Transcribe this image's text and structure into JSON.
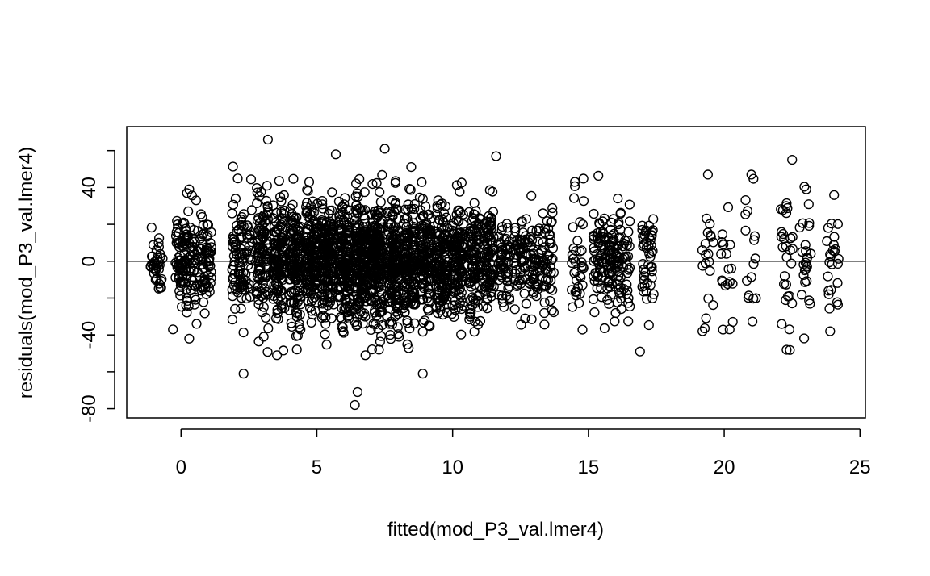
{
  "chart_data": {
    "type": "scatter",
    "title": "",
    "xlabel": "fitted(mod_P3_val.lmer4)",
    "ylabel": "residuals(mod_P3_val.lmer4)",
    "xlim": [
      -2.0,
      25.2
    ],
    "ylim": [
      -85,
      73
    ],
    "xticks": [
      0,
      5,
      10,
      15,
      20,
      25
    ],
    "yticks": [
      -80,
      -40,
      0,
      40
    ],
    "xtick_labels": [
      "0",
      "5",
      "10",
      "15",
      "20",
      "25"
    ],
    "ytick_labels": [
      "-80",
      "-40",
      "0",
      "40"
    ],
    "extra_yticks_unlabeled": [
      -60,
      -20,
      20,
      60
    ],
    "reference_line_y": 0,
    "grid": false,
    "marker": "open-circle",
    "clusters": [
      {
        "x": -0.9,
        "n": 40,
        "sd": 9
      },
      {
        "x": 0.0,
        "n": 70,
        "sd": 14
      },
      {
        "x": 0.4,
        "n": 50,
        "sd": 14
      },
      {
        "x": 0.9,
        "n": 65,
        "sd": 13
      },
      {
        "x": 2.1,
        "n": 60,
        "sd": 15
      },
      {
        "x": 2.4,
        "n": 40,
        "sd": 16
      },
      {
        "x": 3.0,
        "n": 110,
        "sd": 17
      },
      {
        "x": 3.6,
        "n": 130,
        "sd": 17
      },
      {
        "x": 4.2,
        "n": 140,
        "sd": 16
      },
      {
        "x": 4.8,
        "n": 150,
        "sd": 16
      },
      {
        "x": 5.4,
        "n": 170,
        "sd": 16
      },
      {
        "x": 6.0,
        "n": 180,
        "sd": 16
      },
      {
        "x": 6.6,
        "n": 190,
        "sd": 17
      },
      {
        "x": 7.2,
        "n": 200,
        "sd": 17
      },
      {
        "x": 7.8,
        "n": 170,
        "sd": 16
      },
      {
        "x": 8.4,
        "n": 150,
        "sd": 15
      },
      {
        "x": 9.0,
        "n": 140,
        "sd": 15
      },
      {
        "x": 9.6,
        "n": 140,
        "sd": 15
      },
      {
        "x": 10.2,
        "n": 130,
        "sd": 15
      },
      {
        "x": 10.8,
        "n": 110,
        "sd": 15
      },
      {
        "x": 11.3,
        "n": 90,
        "sd": 15
      },
      {
        "x": 11.9,
        "n": 60,
        "sd": 13
      },
      {
        "x": 12.5,
        "n": 60,
        "sd": 13
      },
      {
        "x": 13.0,
        "n": 50,
        "sd": 13
      },
      {
        "x": 13.5,
        "n": 50,
        "sd": 14
      },
      {
        "x": 14.6,
        "n": 35,
        "sd": 14
      },
      {
        "x": 15.4,
        "n": 60,
        "sd": 13
      },
      {
        "x": 15.9,
        "n": 60,
        "sd": 13
      },
      {
        "x": 16.3,
        "n": 50,
        "sd": 15
      },
      {
        "x": 17.2,
        "n": 45,
        "sd": 15
      },
      {
        "x": 19.4,
        "n": 18,
        "sd": 18
      },
      {
        "x": 20.1,
        "n": 18,
        "sd": 17
      },
      {
        "x": 21.0,
        "n": 16,
        "sd": 18
      },
      {
        "x": 22.3,
        "n": 28,
        "sd": 20
      },
      {
        "x": 23.0,
        "n": 26,
        "sd": 17
      },
      {
        "x": 24.0,
        "n": 24,
        "sd": 17
      }
    ],
    "notable_points": [
      {
        "x": 3.2,
        "y": 66
      },
      {
        "x": 6.4,
        "y": -78
      },
      {
        "x": 6.5,
        "y": -71
      },
      {
        "x": 2.3,
        "y": -61
      },
      {
        "x": 8.9,
        "y": -61
      },
      {
        "x": 7.5,
        "y": 61
      },
      {
        "x": 5.7,
        "y": 58
      },
      {
        "x": 11.6,
        "y": 57
      },
      {
        "x": 22.5,
        "y": 55
      },
      {
        "x": 21.0,
        "y": 47
      },
      {
        "x": 19.4,
        "y": 47
      },
      {
        "x": 22.3,
        "y": -48
      },
      {
        "x": 16.9,
        "y": -49
      },
      {
        "x": 19.2,
        "y": -38
      },
      {
        "x": 23.9,
        "y": -38
      },
      {
        "x": -0.3,
        "y": -37
      },
      {
        "x": 20.2,
        "y": -37
      },
      {
        "x": 14.5,
        "y": 43
      },
      {
        "x": 0.3,
        "y": -42
      },
      {
        "x": 0.3,
        "y": 39
      }
    ]
  }
}
